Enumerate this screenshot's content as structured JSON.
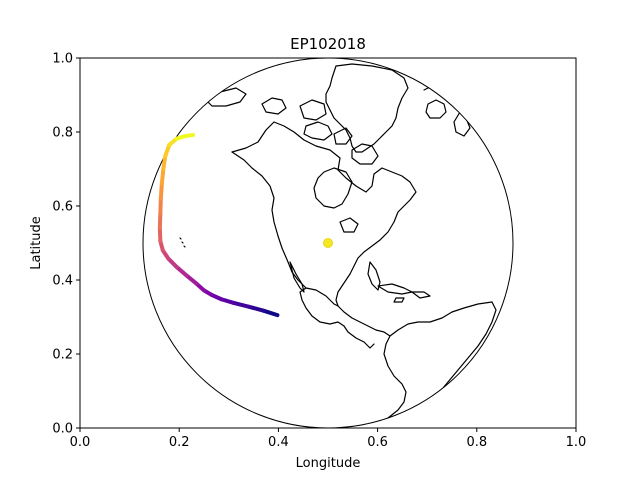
{
  "chart_data": {
    "type": "map",
    "title": "EP102018",
    "xlabel": "Longitude",
    "ylabel": "Latitude",
    "xlim": [
      0.0,
      1.0
    ],
    "ylim": [
      0.0,
      1.0
    ],
    "x_ticks": [
      "0.0",
      "0.2",
      "0.4",
      "0.6",
      "0.8",
      "1.0"
    ],
    "y_ticks": [
      "0.0",
      "0.2",
      "0.4",
      "0.6",
      "0.8",
      "1.0"
    ],
    "globe_center": [
      0.5,
      0.5
    ],
    "marker": {
      "x": 0.5,
      "y": 0.5,
      "color": "#f5e626"
    },
    "colormap": "plasma",
    "track": {
      "name": "EP102018",
      "points": [
        [
          0.398,
          0.305
        ],
        [
          0.37,
          0.317
        ],
        [
          0.34,
          0.328
        ],
        [
          0.31,
          0.338
        ],
        [
          0.285,
          0.348
        ],
        [
          0.265,
          0.36
        ],
        [
          0.25,
          0.372
        ],
        [
          0.235,
          0.39
        ],
        [
          0.215,
          0.412
        ],
        [
          0.195,
          0.435
        ],
        [
          0.178,
          0.458
        ],
        [
          0.167,
          0.48
        ],
        [
          0.162,
          0.505
        ],
        [
          0.161,
          0.54
        ],
        [
          0.162,
          0.58
        ],
        [
          0.163,
          0.62
        ],
        [
          0.165,
          0.66
        ],
        [
          0.168,
          0.7
        ],
        [
          0.172,
          0.735
        ],
        [
          0.18,
          0.765
        ],
        [
          0.195,
          0.782
        ],
        [
          0.212,
          0.789
        ],
        [
          0.228,
          0.792
        ]
      ],
      "colors": [
        "#0d0887",
        "#2a0593",
        "#41049d",
        "#5601a4",
        "#6a00a8",
        "#7e03a8",
        "#8f0da4",
        "#a11b9b",
        "#b12a90",
        "#bf3984",
        "#cc4778",
        "#d6556d",
        "#e16462",
        "#ea7457",
        "#f2844b",
        "#f89540",
        "#fca636",
        "#feb72d",
        "#fdc927",
        "#f8df25",
        "#f0f921",
        "#f0f921"
      ]
    }
  }
}
